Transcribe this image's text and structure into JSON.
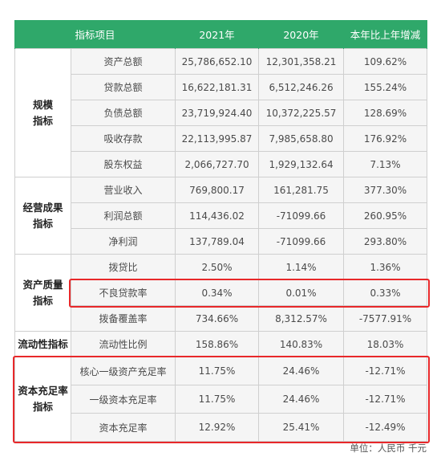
{
  "table": {
    "header": [
      "指标项目",
      "2021年",
      "2020年",
      "本年比上年增减"
    ],
    "groups": [
      {
        "title": "规模\n指标",
        "rows": [
          [
            "资产总额",
            "25,786,652.10",
            "12,301,358.21",
            "109.62%"
          ],
          [
            "贷款总额",
            "16,622,181.31",
            "6,512,246.26",
            "155.24%"
          ],
          [
            "负债总额",
            "23,719,924.40",
            "10,372,225.57",
            "128.69%"
          ],
          [
            "吸收存款",
            "22,113,995.87",
            "7,985,658.80",
            "176.92%"
          ],
          [
            "股东权益",
            "2,066,727.70",
            "1,929,132.64",
            "7.13%"
          ]
        ]
      },
      {
        "title": "经营成果\n指标",
        "rows": [
          [
            "营业收入",
            "769,800.17",
            "161,281.75",
            "377.30%"
          ],
          [
            "利润总额",
            "114,436.02",
            "-71099.66",
            "260.95%"
          ],
          [
            "净利润",
            "137,789.04",
            "-71099.66",
            "293.80%"
          ]
        ]
      },
      {
        "title": "资产质量\n指标",
        "rows": [
          [
            "拨贷比",
            "2.50%",
            "1.14%",
            "1.36%"
          ],
          [
            "不良贷款率",
            "0.34%",
            "0.01%",
            "0.33%"
          ],
          [
            "拨备覆盖率",
            "734.66%",
            "8,312.57%",
            "-7577.91%"
          ]
        ]
      },
      {
        "title": "流动性指标",
        "rows": [
          [
            "流动性比例",
            "158.86%",
            "140.83%",
            "18.03%"
          ]
        ]
      },
      {
        "title": "资本充足率\n指标",
        "rows": [
          [
            "核心一级资产充足率",
            "11.75%",
            "24.46%",
            "-12.71%"
          ],
          [
            "一级资本充足率",
            "11.75%",
            "24.46%",
            "-12.71%"
          ],
          [
            "资本充足率",
            "12.92%",
            "25.41%",
            "-12.49%"
          ]
        ]
      }
    ]
  },
  "unit": "单位：人民币 千元",
  "colors": {
    "header_bg": "#2fa86a",
    "highlight": "#e8282a",
    "cell_bg": "#f5f5f5"
  }
}
